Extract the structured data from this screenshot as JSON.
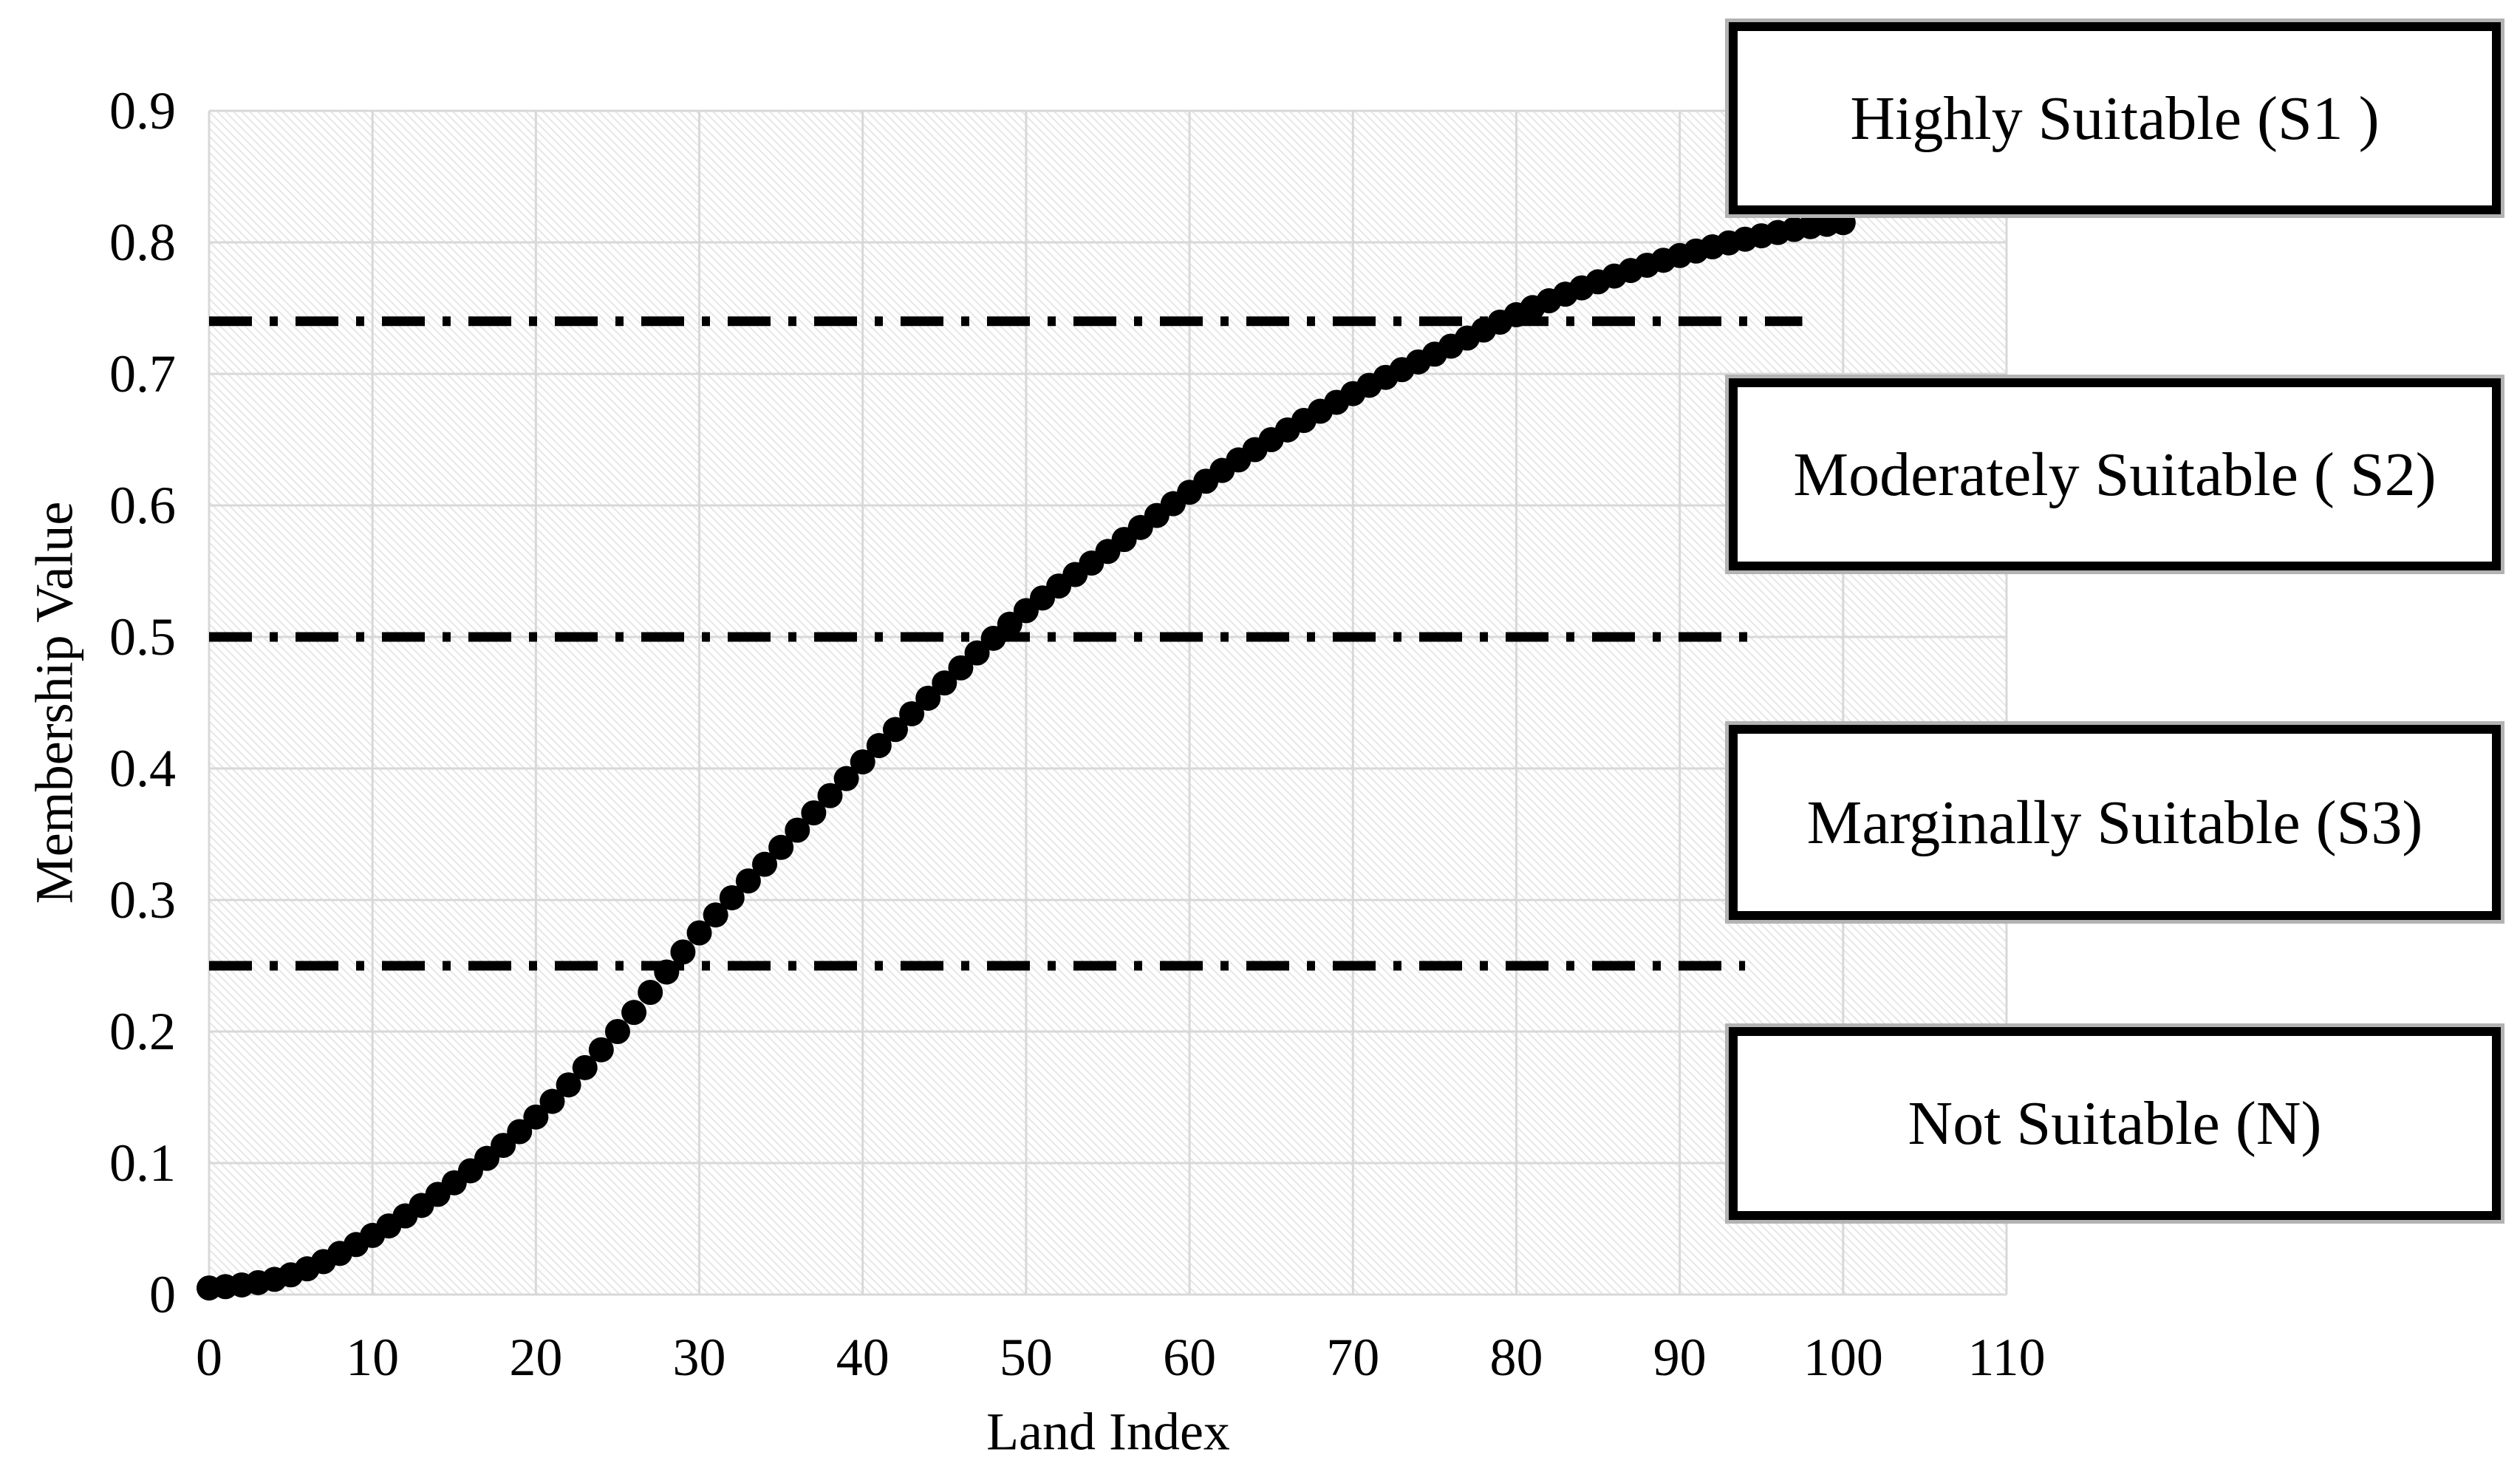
{
  "chart_data": {
    "type": "scatter",
    "title": "",
    "xlabel": "Land Index",
    "ylabel": "Membership Value",
    "xlim": [
      0,
      110
    ],
    "ylim": [
      0,
      0.9
    ],
    "xticks": [
      0,
      10,
      20,
      30,
      40,
      50,
      60,
      70,
      80,
      90,
      100,
      110
    ],
    "yticks": [
      "0",
      "0.1",
      "0.2",
      "0.3",
      "0.4",
      "0.5",
      "0.6",
      "0.7",
      "0.8",
      "0.9"
    ],
    "grid": true,
    "plot_background": "diagonal-hatch",
    "legend": "none",
    "series": [
      {
        "name": "membership-curve",
        "marker": "circle",
        "color": "#000000",
        "points": [
          [
            0,
            0.005
          ],
          [
            5,
            0.015
          ],
          [
            10,
            0.045
          ],
          [
            15,
            0.085
          ],
          [
            20,
            0.135
          ],
          [
            25,
            0.2
          ],
          [
            30,
            0.275
          ],
          [
            35,
            0.34
          ],
          [
            40,
            0.405
          ],
          [
            45,
            0.465
          ],
          [
            50,
            0.52
          ],
          [
            55,
            0.565
          ],
          [
            60,
            0.61
          ],
          [
            65,
            0.65
          ],
          [
            70,
            0.685
          ],
          [
            75,
            0.715
          ],
          [
            80,
            0.745
          ],
          [
            85,
            0.77
          ],
          [
            90,
            0.79
          ],
          [
            95,
            0.805
          ],
          [
            100,
            0.815
          ]
        ]
      }
    ],
    "threshold_lines": [
      {
        "value": 0.74,
        "x_start": 0,
        "x_end": 97.5,
        "style": "dashdot",
        "color": "#000000"
      },
      {
        "value": 0.5,
        "x_start": 0,
        "x_end": 94.5,
        "style": "dashdot",
        "color": "#000000"
      },
      {
        "value": 0.25,
        "x_start": 0,
        "x_end": 94,
        "style": "dashdot",
        "color": "#000000"
      }
    ],
    "annotations": [
      {
        "label": "Highly Suitable (S1 )"
      },
      {
        "label": "Moderately Suitable ( S2)"
      },
      {
        "label": "Marginally Suitable (S3)"
      },
      {
        "label": "Not Suitable (N)"
      }
    ]
  },
  "colors": {
    "background": "#ffffff",
    "grid": "#d8d8d8",
    "hatch": "#e8e8e8",
    "marker": "#000000",
    "box_border": "#000000",
    "box_shadow": "#b3b3b3",
    "text": "#000000"
  }
}
